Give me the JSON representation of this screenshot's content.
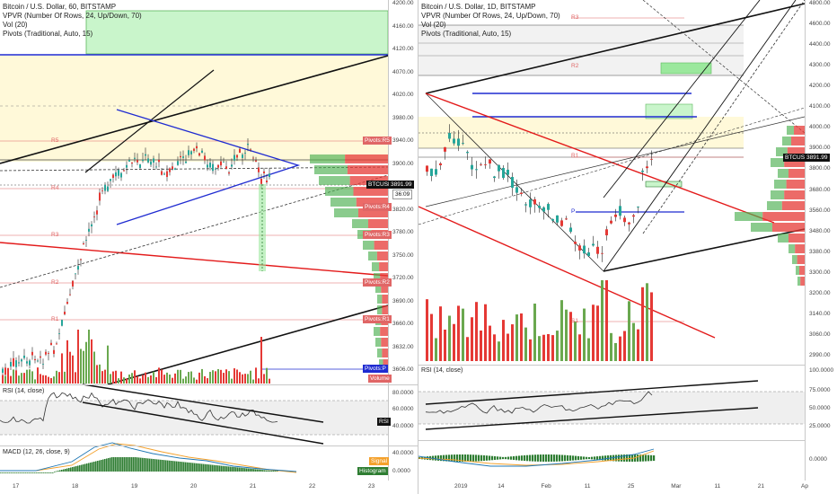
{
  "left_chart": {
    "title": "Bitcoin / U.S. Dollar, 60, BITSTAMP",
    "indicators": [
      "VPVR (Number Of Rows, 24, Up/Down, 70)",
      "Vol (20)",
      "Pivots (Traditional, Auto, 15)"
    ],
    "price_scale": [
      "4200.00",
      "4160.00",
      "4120.00",
      "4070.00",
      "4020.00",
      "3980.00",
      "3940.00",
      "3900.00",
      "3860.00",
      "3820.00",
      "3780.00",
      "3750.00",
      "3720.00",
      "3690.00",
      "3660.00",
      "3632.00",
      "3606.00"
    ],
    "pivot_tags": [
      "Pivots:R5",
      "Pivots:R4",
      "Pivots:R3",
      "Pivots:R2",
      "Pivots:R1",
      "Pivots:P",
      "Volume"
    ],
    "pivot_levels_left": [
      "R5",
      "R4",
      "R3",
      "R2",
      "R1"
    ],
    "price_badge": "BTCUSD",
    "price_value": "3891.99",
    "countdown": "36:09",
    "rsi_label": "RSI (14, close)",
    "rsi_scale": [
      "80.0000",
      "60.0000",
      "40.0000"
    ],
    "rsi_tag": "RSI",
    "macd_label": "MACD (12, 26, close, 9)",
    "macd_scale": [
      "40.0000",
      "0.0000"
    ],
    "macd_tags": [
      "Signal",
      "Histogram"
    ],
    "x_axis": [
      "17",
      "18",
      "19",
      "20",
      "21",
      "22",
      "23"
    ]
  },
  "right_chart": {
    "title": "Bitcoin / U.S. Dollar, 1D, BITSTAMP",
    "indicators": [
      "VPVR (Number Of Rows, 24, Up/Down, 70)",
      "Vol (20)",
      "Pivots (Traditional, Auto, 15)"
    ],
    "price_scale": [
      "4800.00",
      "4600.00",
      "4400.00",
      "4300.00",
      "4200.00",
      "4100.00",
      "4000.00",
      "3900.00",
      "3800.00",
      "3680.00",
      "3560.00",
      "3480.00",
      "3380.00",
      "3300.00",
      "3200.00",
      "3140.00",
      "3060.00",
      "2990.00"
    ],
    "pivot_levels": [
      "R3",
      "R2",
      "R1",
      "P",
      "S1"
    ],
    "price_badge": "BTCUSD",
    "price_value": "3891.99",
    "rsi_label": "RSI (14, close)",
    "rsi_scale": [
      "100.0000",
      "75.0000",
      "50.0000",
      "25.0000"
    ],
    "macd_scale": [
      "0.0000"
    ],
    "x_axis": [
      "2019",
      "14",
      "Feb",
      "11",
      "25",
      "Mar",
      "11",
      "21",
      "Ap"
    ]
  },
  "colors": {
    "up": "#26a69a",
    "vol_up": "#6aa84f",
    "down": "#e53935",
    "pivot_tag": "#e06666",
    "blue_line": "#1f2bd1",
    "red_line": "#e31a1a",
    "zone_yellow": "#fff9d9",
    "zone_green": "#c9f5cb"
  }
}
